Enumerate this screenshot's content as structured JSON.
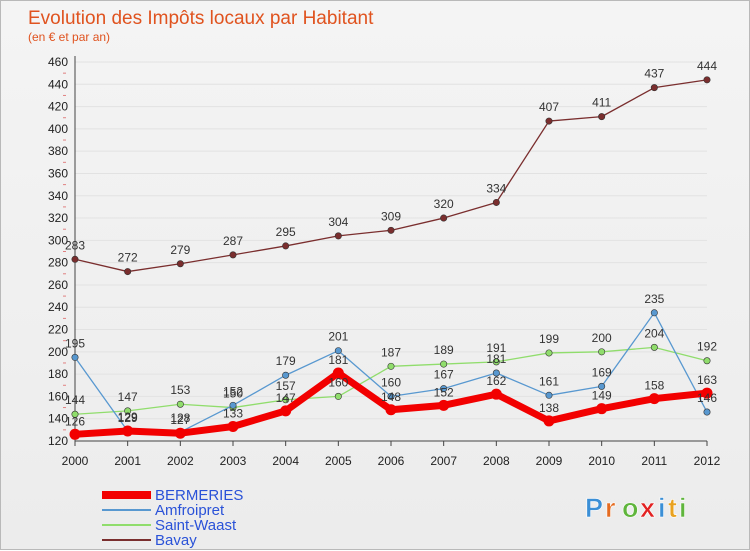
{
  "chart_data": {
    "type": "line",
    "title": "Evolution des Impôts locaux par Habitant",
    "subtitle": "(en € et par an)",
    "categories": [
      "2000",
      "2001",
      "2002",
      "2003",
      "2004",
      "2005",
      "2006",
      "2007",
      "2008",
      "2009",
      "2010",
      "2011",
      "2012"
    ],
    "ylim": [
      120,
      460
    ],
    "yticks": [
      120,
      140,
      160,
      180,
      200,
      220,
      240,
      260,
      280,
      300,
      320,
      340,
      360,
      380,
      400,
      420,
      440,
      460
    ],
    "series": [
      {
        "name": "Bavay",
        "color": "#7a2e2e",
        "values": [
          283,
          272,
          279,
          287,
          295,
          304,
          309,
          320,
          334,
          407,
          411,
          437,
          444
        ]
      },
      {
        "name": "Saint-Waast",
        "color": "#90dd6c",
        "values": [
          144,
          147,
          153,
          150,
          157,
          160,
          187,
          189,
          191,
          199,
          200,
          204,
          192
        ]
      },
      {
        "name": "Amfroipret",
        "color": "#5898d0",
        "values": [
          195,
          129,
          128,
          152,
          179,
          201,
          160,
          167,
          181,
          161,
          169,
          235,
          146
        ]
      },
      {
        "name": "BERMERIES",
        "color": "#f20000",
        "values": [
          126,
          129,
          127,
          133,
          147,
          181,
          148,
          152,
          162,
          138,
          149,
          158,
          163
        ]
      }
    ],
    "legend": [
      "BERMERIES",
      "Amfroipret",
      "Saint-Waast",
      "Bavay"
    ]
  },
  "logo": {
    "letters": [
      "P",
      "r",
      "o",
      "x",
      "i",
      "t",
      "i"
    ],
    "colors": [
      "#3b8fd6",
      "#e46b20",
      "#5fb53c",
      "#e22222",
      "#3b8fd6",
      "#e9a21f",
      "#5fb53c"
    ]
  }
}
